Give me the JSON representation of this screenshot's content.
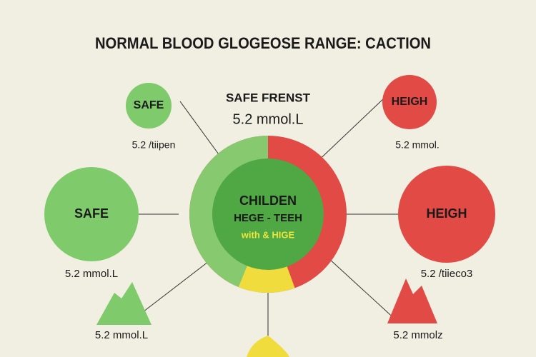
{
  "title": "NORMAL BLOOD GLOGEOSE RANGE: CACTION",
  "center": {
    "label": "SAFE FRENST",
    "value": "5.2 mmol.L",
    "ring_lines": [
      "CHILDEN",
      "HEGE - TEEH",
      "with & HIGE"
    ]
  },
  "nodes": [
    {
      "label": "SAFE",
      "caption": "5.2 /tiipen"
    },
    {
      "label": "SAFE",
      "caption": "5.2 mmol.L"
    },
    {
      "label": "HEIGH",
      "caption": "5.2 mmol."
    },
    {
      "label": "HEIGH",
      "caption": "5.2 /tiieco3"
    }
  ],
  "peaks": [
    {
      "caption": "5.2 mmol.L"
    },
    {
      "caption": "5.2 mmolz"
    }
  ]
}
